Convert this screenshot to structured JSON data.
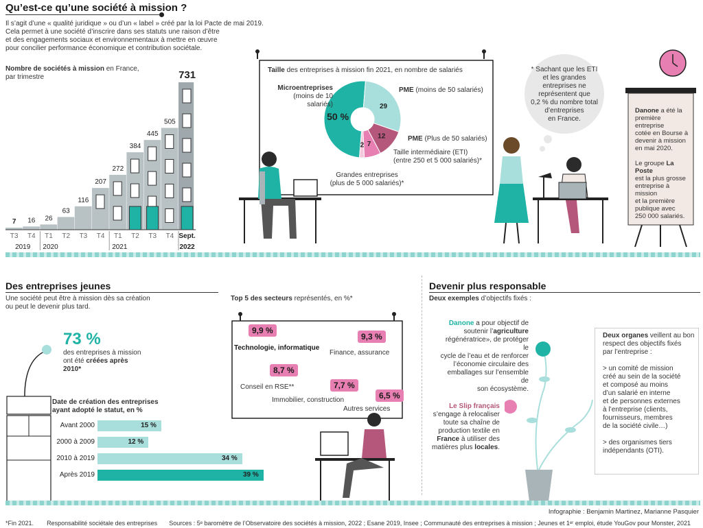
{
  "header": {
    "title": "Qu’est-ce qu’une société à mission ?",
    "intro_lines": [
      "Il s’agit d’une « qualité juridique » ou d’un « label » créé par la loi Pacte de mai 2019.",
      "Cela permet à une société d’inscrire dans ses statuts une raison d’être",
      "et des engagements sociaux et environnementaux à mettre en œuvre",
      "pour concilier performance économique et contribution sociétale."
    ]
  },
  "quarterly": {
    "title_bold": "Nombre de sociétés à mission",
    "title_rest": "en France,",
    "title_line2": "par trimestre"
  },
  "size_box": {
    "title_bold": "Taille",
    "title_rest": "des entreprises à mission fin 2021, en nombre de salariés",
    "micro_label": "Microentreprises",
    "micro_sub": "(moins de 10 salariés)",
    "pme1_label": "PME",
    "pme1_sub": "(moins de 50 salariés)",
    "pme2_label": "PME",
    "pme2_sub": "(Plus de 50 salariés)",
    "eti_label": "Taille intermédiaire (ETI)",
    "eti_sub": "(entre 250 et 5 000 salariés)*",
    "ge_label": "Grandes entreprises",
    "ge_sub": "(plus de 5 000 salariés)*"
  },
  "bubble": {
    "lines": [
      "* Sachant que les ETI",
      "et les grandes",
      "entreprises ne",
      "représentent que",
      "0,2 % du nombre total",
      "d’entreprises",
      "en France."
    ]
  },
  "board": {
    "p1_bold": "Danone",
    "p1_lines": [
      "a été la",
      "première entreprise",
      "cotée en Bourse à",
      "devenir à mission",
      "en mai 2020."
    ],
    "p2_lines_a": "Le groupe",
    "p2_bold": "La Poste",
    "p2_lines": [
      "est la plus grosse",
      "entreprise à mission",
      "et la première",
      "publique avec",
      "250 000 salariés."
    ]
  },
  "young": {
    "title": "Des entreprises jeunes",
    "intro_lines": [
      "Une société peut être à mission dès sa création",
      "ou peut le devenir plus tard."
    ],
    "pct": "73 %",
    "pct_lines": [
      "des entreprises à mission",
      "ont été"
    ],
    "pct_bold": "créées après",
    "pct_bold2": "2010*",
    "chart_title_line1": "Date de création des entreprises",
    "chart_title_line2": "ayant adopté le statut, en %"
  },
  "top5": {
    "title_bold": "Top 5 des secteurs",
    "title_rest": "représentés, en %*"
  },
  "responsible": {
    "title": "Devenir plus responsable",
    "sub_bold": "Deux exemples",
    "sub_rest": "d’objectifs fixés :",
    "danone_brand": "Danone",
    "danone_lines": [
      "a pour objectif de",
      "soutenir l’",
      "régénératrice», de protéger le",
      "cycle de l’eau et de renforcer",
      "l’économie circulaire des",
      "emballages sur l’ensemble de",
      "son écosystème."
    ],
    "danone_bold": "agriculture",
    "danone_bold2": "régénératrice»",
    "slip_brand": "Le Slip français",
    "slip_lines": [
      "s’engage à relocaliser",
      "toute sa chaîne de",
      "production textile en",
      "à utiliser des",
      "matières plus"
    ],
    "slip_bold_france": "France",
    "slip_bold_locales": "locales",
    "organs_bold": "Deux organes",
    "organs_lines": [
      "veillent au bon",
      "respect des objectifs fixés",
      "par l’entreprise :"
    ],
    "organ1_lines": [
      "> un comité de mission",
      "créé au sein de la société",
      "et composé au moins",
      "d’un salarié en interne",
      "et de personnes externes",
      "à l’entreprise (clients,",
      "fournisseurs, membres",
      "de la société civile…)"
    ],
    "organ2_lines": [
      "> des organismes tiers",
      "indépendants (OTI)."
    ]
  },
  "footer": {
    "credit": "Infographie : Benjamin Martinez, Marianne Pasquier",
    "note1": "*Fin 2021.",
    "note2": "Responsabilité sociétale des entreprises",
    "sources": "Sources : 5ᵉ baromètre de l’Observatoire des sociétés à mission, 2022 ; Esane 2019, Insee ; Communauté des entreprises à mission ; Jeunes et 1ᵉʳ emploi, étude YouGov pour Monster, 2021"
  },
  "colors": {
    "teal": "#1fb3a5",
    "teal_light": "#a8dedb",
    "pink": "#e77fb2",
    "mauve": "#b5577a",
    "building": "#a9b4b8"
  },
  "chart_data": [
    {
      "type": "bar",
      "name": "quarterly-count",
      "categories": [
        "T3 2019",
        "T4 2019",
        "T1 2020",
        "T2 2020",
        "T3 2020",
        "T4 2020",
        "T1 2021",
        "T2 2021",
        "T3 2021",
        "T4 2021",
        "Sept. 2022"
      ],
      "values": [
        7,
        16,
        26,
        63,
        116,
        207,
        272,
        384,
        445,
        505,
        731
      ],
      "tick_labels": [
        "T3",
        "T4",
        "T1",
        "T2",
        "T3",
        "T4",
        "T1",
        "T2",
        "T3",
        "T4",
        "Sept."
      ],
      "year_labels": [
        "2019",
        "2020",
        "2021",
        "2022"
      ],
      "ylim": [
        0,
        731
      ]
    },
    {
      "type": "pie",
      "name": "company-size",
      "labels": [
        "Microentreprises",
        "PME (moins de 50 salariés)",
        "PME (Plus de 50 salariés)",
        "Taille intermédiaire (ETI)",
        "Grandes entreprises"
      ],
      "values": [
        50,
        29,
        12,
        7,
        2
      ],
      "value_labels": [
        "50 %",
        "29",
        "12",
        "7",
        "2"
      ],
      "colors": [
        "#1fb3a5",
        "#a8dedb",
        "#b5577a",
        "#e77fb2",
        "#f4c7dc"
      ]
    },
    {
      "type": "bar",
      "name": "creation-date",
      "orientation": "horizontal",
      "categories": [
        "Avant 2000",
        "2000 à 2009",
        "2010 à 2019",
        "Après 2019"
      ],
      "values": [
        15,
        12,
        34,
        39
      ],
      "value_labels": [
        "15 %",
        "12 %",
        "34 %",
        "39 %"
      ],
      "xlim": [
        0,
        39
      ]
    },
    {
      "type": "table",
      "name": "top-sectors",
      "categories": [
        "Technologie, informatique",
        "Finance, assurance",
        "Conseil en RSE**",
        "Immobilier, construction",
        "Autres services"
      ],
      "values": [
        9.9,
        9.3,
        8.7,
        7.7,
        6.5
      ],
      "value_labels": [
        "9,9 %",
        "9,3 %",
        "8,7 %",
        "7,7 %",
        "6,5 %"
      ]
    }
  ]
}
